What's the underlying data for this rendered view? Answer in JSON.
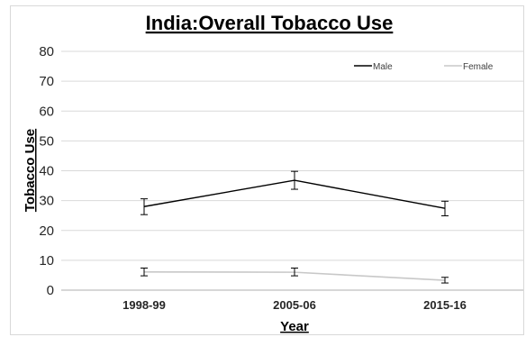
{
  "chart_data": {
    "type": "line",
    "title": "India:Overall Tobacco Use",
    "xlabel": "Year",
    "ylabel": "Tobacco Use",
    "categories": [
      "1998-99",
      "2005-06",
      "2015-16"
    ],
    "ylim": [
      0,
      80
    ],
    "yticks": [
      0,
      10,
      20,
      30,
      40,
      50,
      60,
      70,
      80
    ],
    "grid": true,
    "legend_position": "top-right",
    "series": [
      {
        "name": "Male",
        "color": "#000000",
        "values": [
          28.0,
          36.8,
          27.4
        ],
        "error_low": [
          25.3,
          33.8,
          24.9
        ],
        "error_high": [
          30.6,
          39.8,
          29.8
        ]
      },
      {
        "name": "Female",
        "color": "#c8c8c8",
        "values": [
          6.1,
          6.0,
          3.3
        ],
        "error_low": [
          4.8,
          4.8,
          2.4
        ],
        "error_high": [
          7.4,
          7.4,
          4.3
        ]
      }
    ]
  }
}
